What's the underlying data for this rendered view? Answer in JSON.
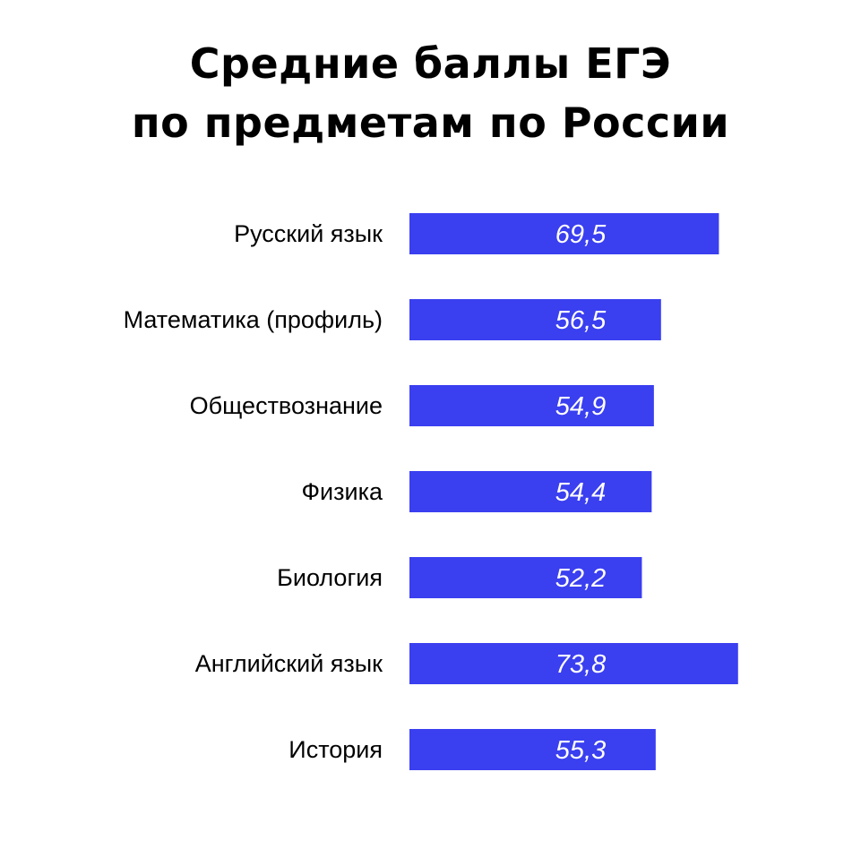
{
  "chart_data": {
    "type": "bar",
    "orientation": "horizontal",
    "title_lines": [
      "Средние баллы ЕГЭ",
      "по предметам по России"
    ],
    "categories": [
      "Русский язык",
      "Математика (профиль)",
      "Обществознание",
      "Физика",
      "Биология",
      "Английский язык",
      "История"
    ],
    "values": [
      69.5,
      56.5,
      54.9,
      54.4,
      52.2,
      73.8,
      55.3
    ],
    "value_labels": [
      "69,5",
      "56,5",
      "54,9",
      "54,4",
      "52,2",
      "73,8",
      "55,3"
    ],
    "bar_color": "#3a3ff0",
    "label_color": "#ffffff",
    "grid": false,
    "legend": "none"
  }
}
